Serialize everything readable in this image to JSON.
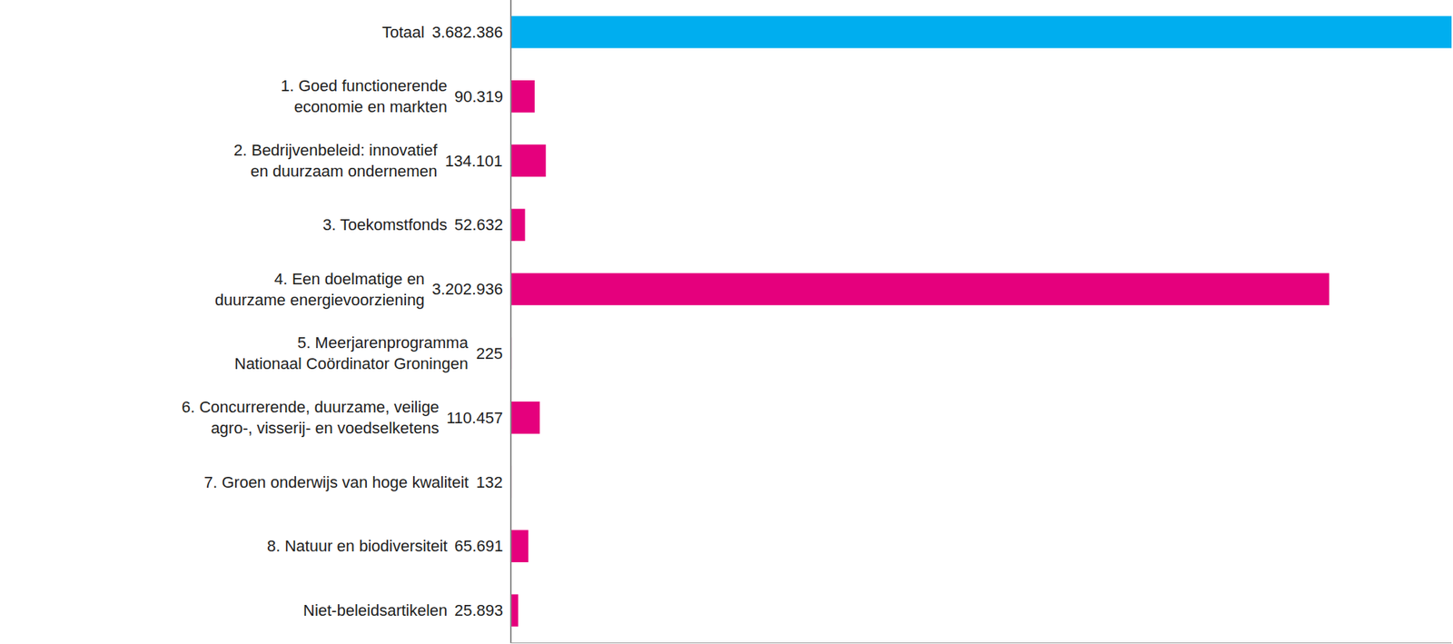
{
  "chart_data": {
    "type": "bar",
    "orientation": "horizontal",
    "categories": [
      "Totaal",
      "1. Goed functionerende\neconomie en markten",
      "2. Bedrijvenbeleid: innovatief\nen duurzaam ondernemen",
      "3. Toekomstfonds",
      "4. Een doelmatige en\nduurzame energievoorziening",
      "5. Meerjarenprogramma\nNationaal Coördinator Groningen",
      "6. Concurrerende, duurzame, veilige\nagro-, visserij- en voedselketens",
      "7. Groen onderwijs van hoge kwaliteit",
      "8. Natuur en biodiversiteit",
      "Niet-beleidsartikelen"
    ],
    "values": [
      3682386,
      90319,
      134101,
      52632,
      3202936,
      225,
      110457,
      132,
      65691,
      25893
    ],
    "value_labels": [
      "3.682.386",
      "90.319",
      "134.101",
      "52.632",
      "3.202.936",
      "225",
      "110.457",
      "132",
      "65.691",
      "25.893"
    ],
    "colors": [
      "#00aeef",
      "#e5007d",
      "#e5007d",
      "#e5007d",
      "#e5007d",
      "#e5007d",
      "#e5007d",
      "#e5007d",
      "#e5007d",
      "#e5007d"
    ],
    "xlim": [
      0,
      3682386
    ],
    "xticks": [],
    "grid": false,
    "data_labels": true,
    "tick_labels": "y"
  }
}
